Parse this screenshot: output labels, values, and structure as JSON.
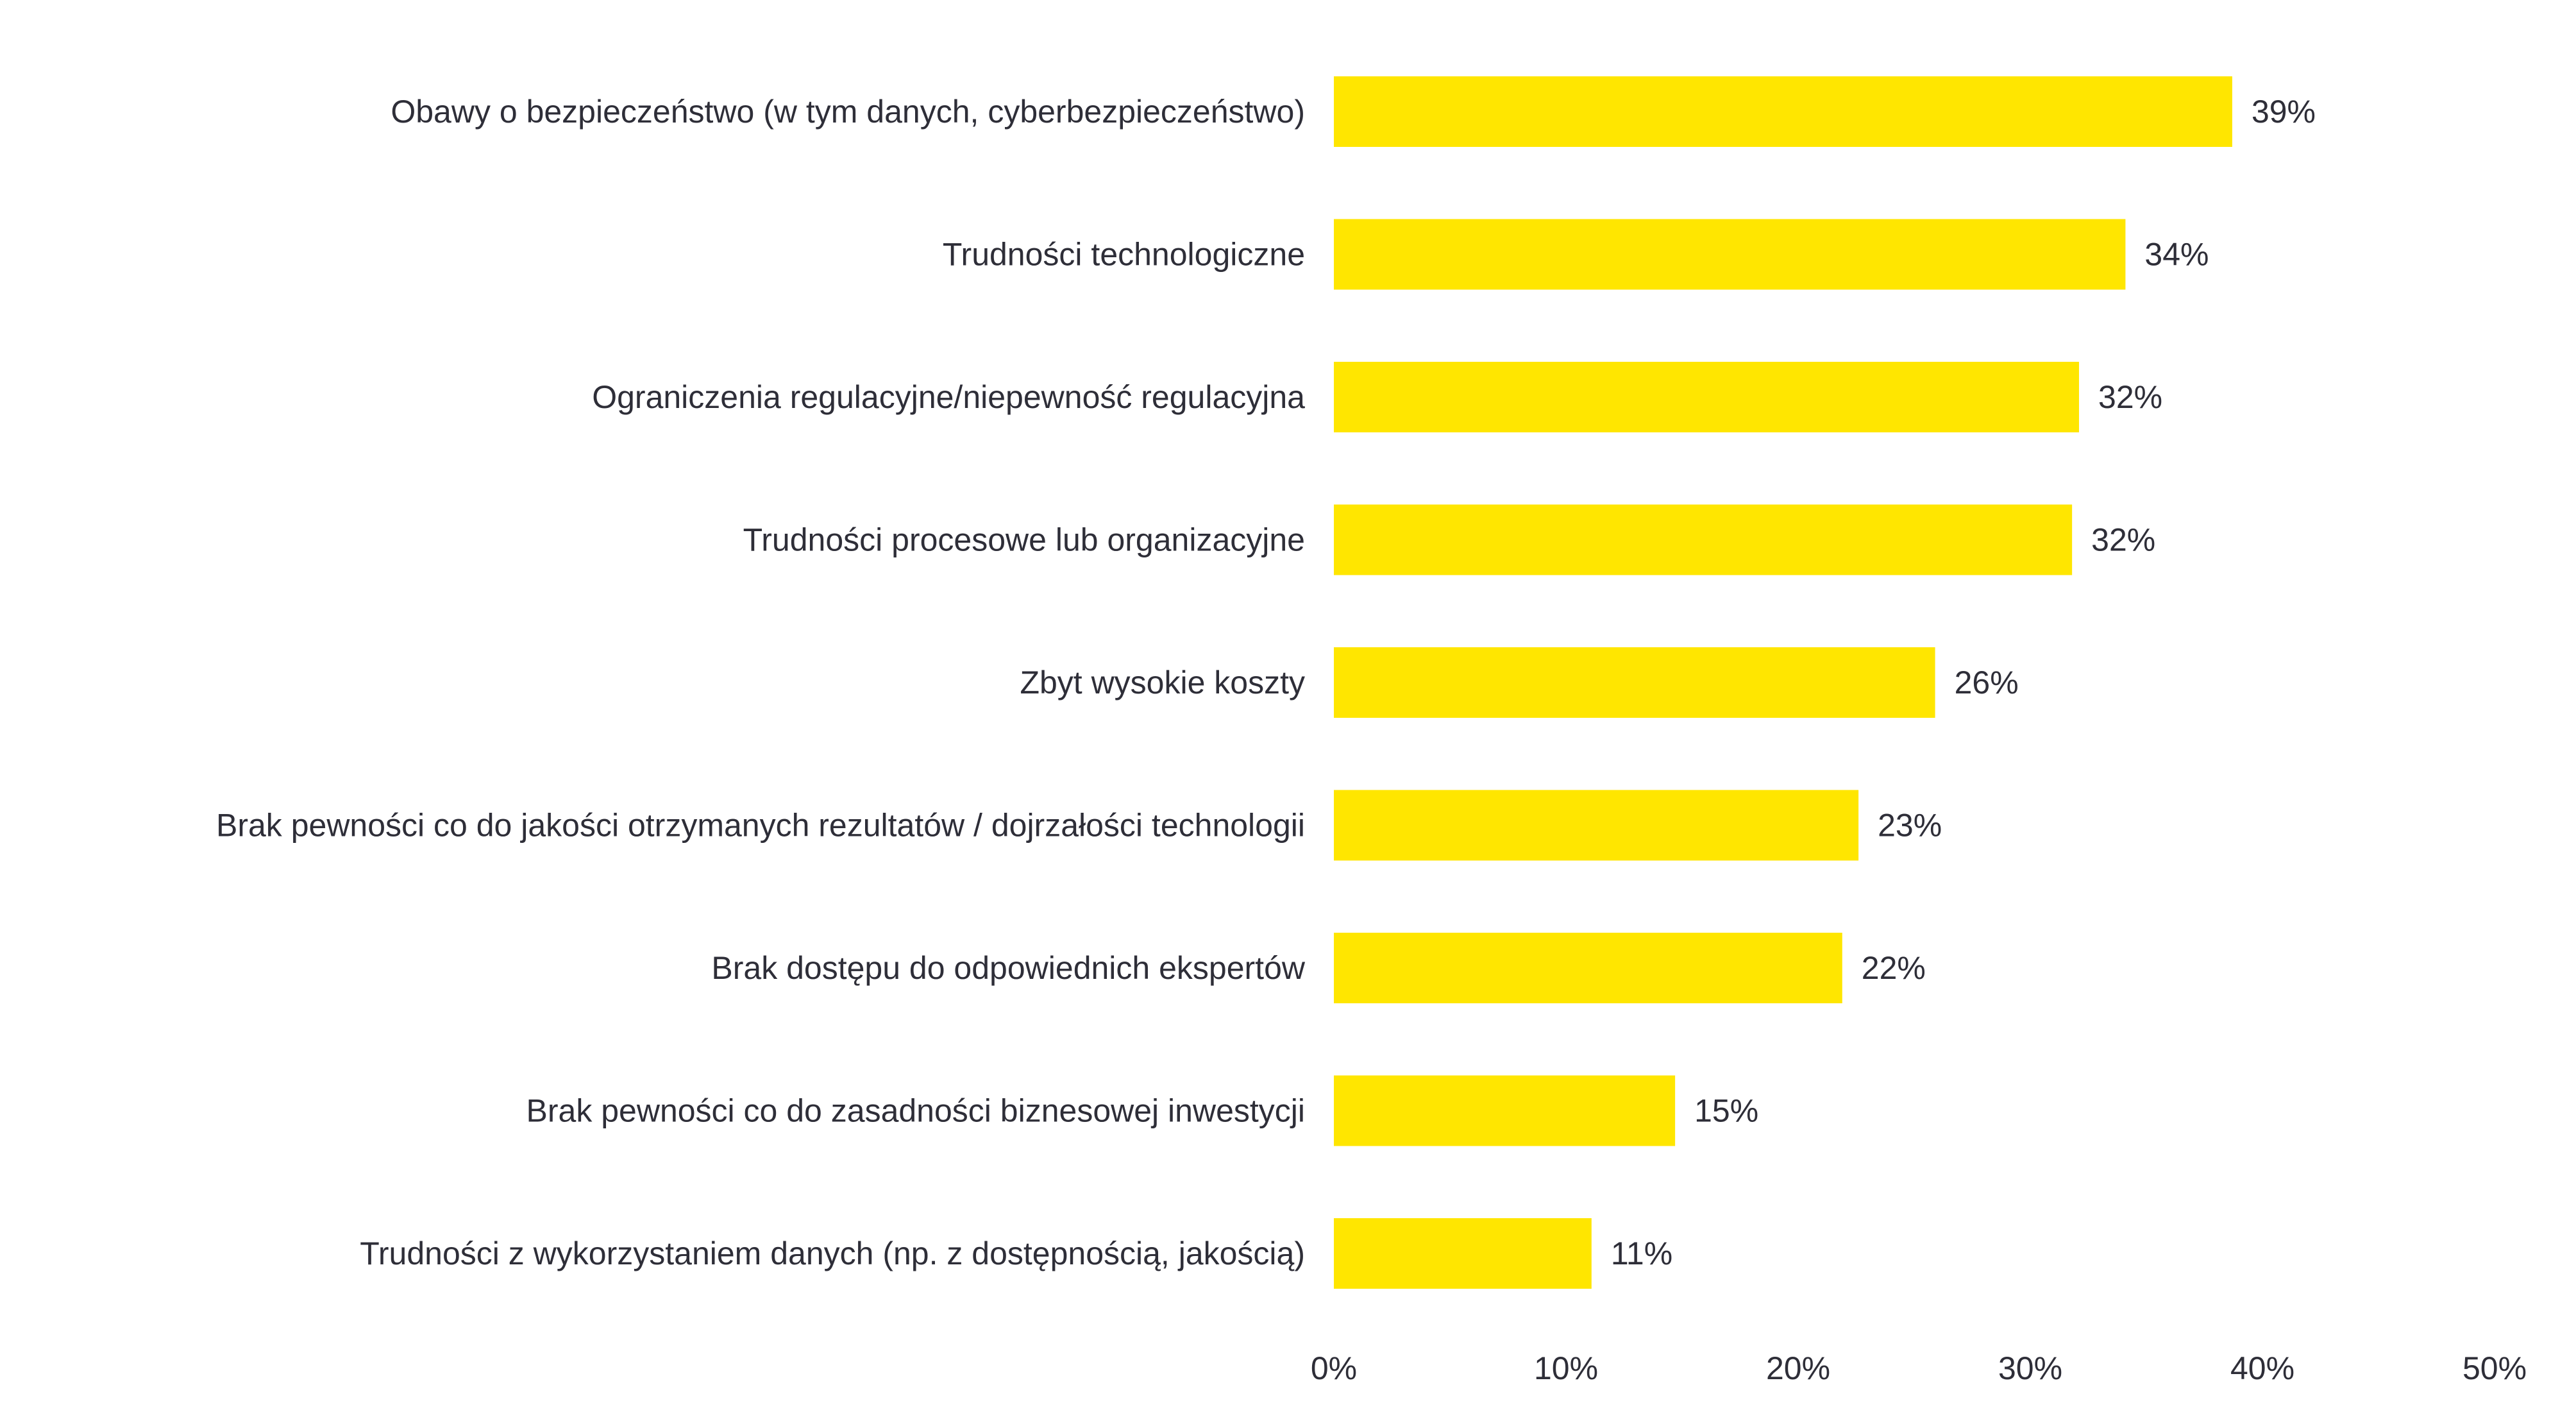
{
  "chart_data": {
    "type": "bar",
    "orientation": "horizontal",
    "title": "",
    "xlabel": "",
    "ylabel": "",
    "categories": [
      "Obawy o bezpieczeństwo (w tym danych, cyberbezpieczeństwo)",
      "Trudności technologiczne",
      "Ograniczenia regulacyjne/niepewność regulacyjna",
      "Trudności procesowe lub organizacyjne",
      "Zbyt wysokie koszty",
      "Brak pewności co do jakości otrzymanych rezultatów / dojrzałości technologii",
      "Brak dostępu do odpowiednich ekspertów",
      "Brak pewności co do zasadności biznesowej inwestycji",
      "Trudności z wykorzystaniem danych (np. z dostępnością, jakością)"
    ],
    "values": [
      38.7,
      34.1,
      32.1,
      31.8,
      25.9,
      22.6,
      21.9,
      14.7,
      11.1
    ],
    "value_labels": [
      "39%",
      "34%",
      "32%",
      "32%",
      "26%",
      "23%",
      "22%",
      "15%",
      "11%"
    ],
    "xlim": [
      0,
      50
    ],
    "x_ticks": [
      0,
      10,
      20,
      30,
      40,
      50
    ],
    "x_tick_labels": [
      "0%",
      "10%",
      "20%",
      "30%",
      "40%",
      "50%"
    ],
    "grid": false,
    "legend": "none",
    "bar_color": "#ffe600",
    "text_color": "#2e2e38"
  }
}
